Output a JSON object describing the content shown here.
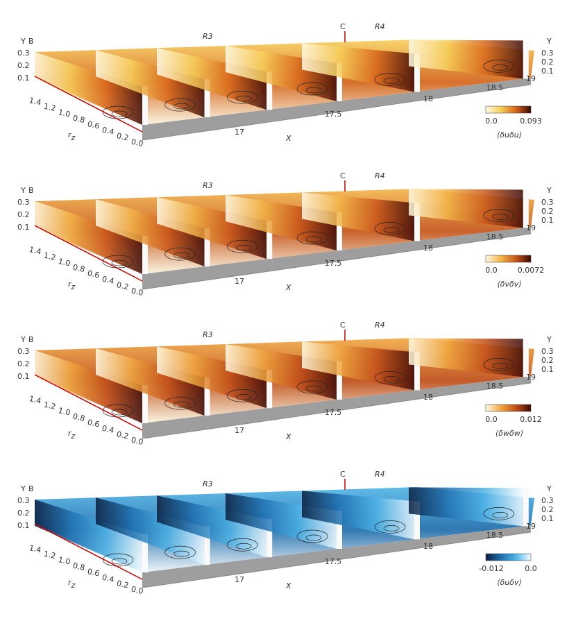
{
  "panels": [
    {
      "axis": {
        "y_label": "Y",
        "y_ticks": [
          "0.3",
          "0.2",
          "0.1"
        ],
        "rz_label": {
          "base": "r",
          "sub": "z"
        },
        "rz_ticks": [
          "1.4",
          "1.2",
          "1.0",
          "0.8",
          "0.6",
          "0.4",
          "0.2",
          "0.0"
        ],
        "x_label": "X",
        "x_ticks": [
          "17",
          "17.5",
          "18",
          "18.5",
          "19"
        ]
      },
      "markers": {
        "b": "B",
        "c": "C",
        "r3": "R3",
        "r4": "R4"
      },
      "colorbar": {
        "min": "0.0",
        "max": "0.093",
        "title": "⟨δuδu⟩",
        "colormap": [
          "#fffbe6",
          "#f7cf5a",
          "#d8661a",
          "#3a0805"
        ]
      }
    },
    {
      "axis": {
        "y_label": "Y",
        "y_ticks": [
          "0.3",
          "0.2",
          "0.1"
        ],
        "rz_label": {
          "base": "r",
          "sub": "z"
        },
        "rz_ticks": [
          "1.4",
          "1.2",
          "1.0",
          "0.8",
          "0.6",
          "0.4",
          "0.2",
          "0.0"
        ],
        "x_label": "X",
        "x_ticks": [
          "17",
          "17.5",
          "18",
          "18.5",
          "19"
        ]
      },
      "markers": {
        "b": "B",
        "c": "C",
        "r3": "R3",
        "r4": "R4"
      },
      "colorbar": {
        "min": "0.0",
        "max": "0.0072",
        "title": "⟨δvδv⟩",
        "colormap": [
          "#fffbe6",
          "#f3b548",
          "#c9561a",
          "#3a0805"
        ]
      }
    },
    {
      "axis": {
        "y_label": "Y",
        "y_ticks": [
          "0.3",
          "0.2",
          "0.1"
        ],
        "rz_label": {
          "base": "r",
          "sub": "z"
        },
        "rz_ticks": [
          "1.4",
          "1.2",
          "1.0",
          "0.8",
          "0.6",
          "0.4",
          "0.2",
          "0.0"
        ],
        "x_label": "X",
        "x_ticks": [
          "17",
          "17.5",
          "18",
          "18.5",
          "19"
        ]
      },
      "markers": {
        "b": "B",
        "c": "C",
        "r3": "R3",
        "r4": "R4"
      },
      "colorbar": {
        "min": "0.0",
        "max": "0.012",
        "title": "⟨δwδw⟩",
        "colormap": [
          "#fffbe6",
          "#f0a840",
          "#c24e18",
          "#3a0805"
        ]
      }
    },
    {
      "axis": {
        "y_label": "Y",
        "y_ticks": [
          "0.3",
          "0.2",
          "0.1"
        ],
        "rz_label": {
          "base": "r",
          "sub": "z"
        },
        "rz_ticks": [
          "1.4",
          "1.2",
          "1.0",
          "0.8",
          "0.6",
          "0.4",
          "0.2",
          "0.0"
        ],
        "x_label": "X",
        "x_ticks": [
          "17",
          "17.5",
          "18",
          "18.5",
          "19"
        ]
      },
      "markers": {
        "b": "B",
        "c": "C",
        "r3": "R3",
        "r4": "R4"
      },
      "colorbar": {
        "min": "-0.012",
        "max": "0.0",
        "title": "⟨δuδv⟩",
        "colormap": [
          "#0a1e3c",
          "#1f6fb0",
          "#4fb4e6",
          "#f4fbff"
        ]
      }
    }
  ]
}
